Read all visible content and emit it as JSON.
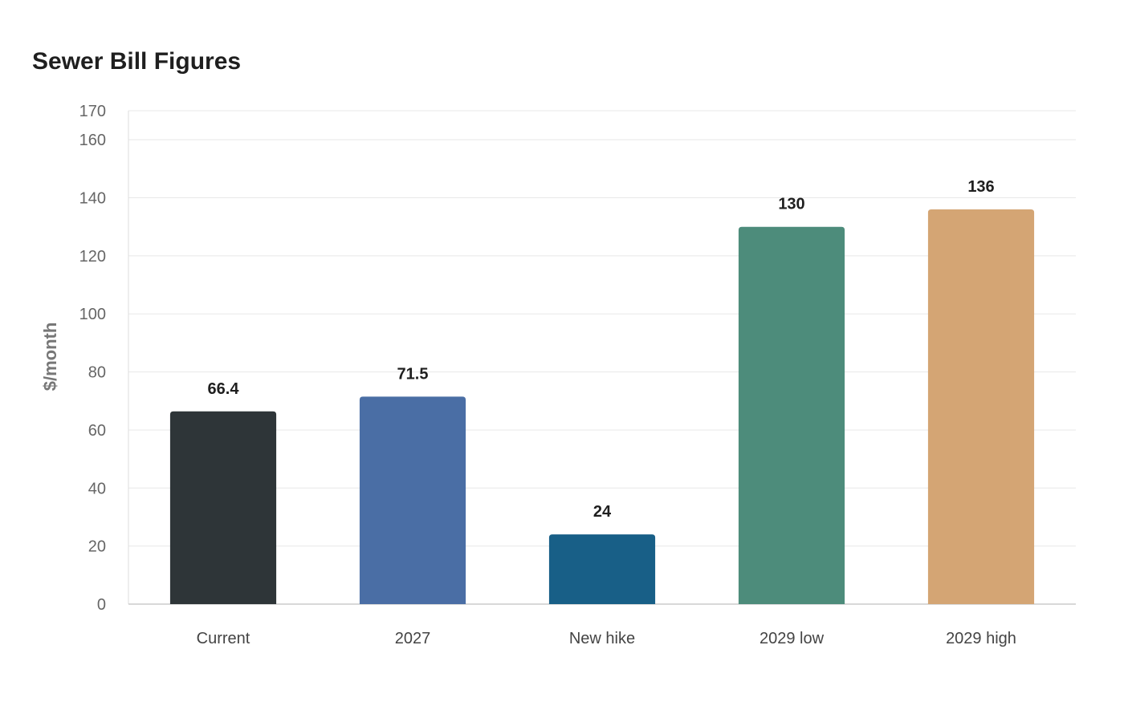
{
  "chart_data": {
    "type": "bar",
    "title": "Sewer Bill Figures",
    "xlabel": "",
    "ylabel": "$/month",
    "categories": [
      "Current",
      "2027",
      "New hike",
      "2029 low",
      "2029 high"
    ],
    "values": [
      66.4,
      71.5,
      24,
      130,
      136
    ],
    "value_labels": [
      "66.4",
      "71.5",
      "24",
      "130",
      "136"
    ],
    "colors": [
      "#2e3538",
      "#4a6ea5",
      "#185f87",
      "#4d8c7b",
      "#d4a574"
    ],
    "yticks": [
      0,
      20,
      40,
      60,
      80,
      100,
      120,
      140,
      160,
      170
    ],
    "ylim": [
      0,
      170
    ],
    "grid": true,
    "legend": "none"
  }
}
